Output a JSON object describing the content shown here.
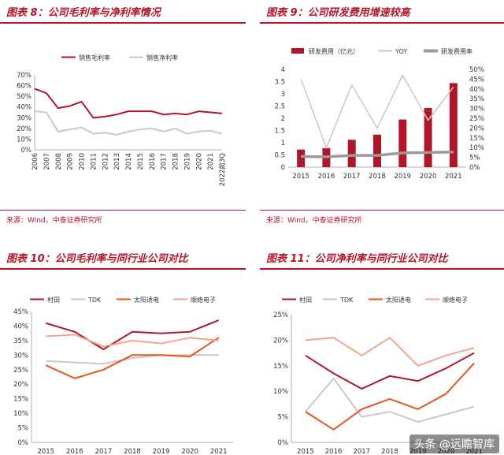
{
  "colors": {
    "accent": "#b0152a",
    "gray": "#c8c8c8",
    "orange": "#e8531e",
    "salmon": "#f5a48c"
  },
  "panels": [
    {
      "title": "图表 8：公司毛利率与净利率情况",
      "source": "来源：Wind，中泰证券研究所"
    },
    {
      "title": "图表 9：公司研发费用增速较高",
      "source": "来源：Wind，中泰证券研究所"
    },
    {
      "title": "图表 10：公司毛利率与同行业公司对比",
      "source": ""
    },
    {
      "title": "图表 11：公司净利率与同行业公司对比",
      "source": ""
    }
  ],
  "watermark": "头条 @远瞻智库",
  "chart_data": [
    {
      "type": "line",
      "categories": [
        "2006",
        "2007",
        "2008",
        "2009",
        "2010",
        "2011",
        "2012",
        "2013",
        "2014",
        "2015",
        "2016",
        "2017",
        "2018",
        "2019",
        "2020",
        "2021",
        "2022前3Q"
      ],
      "series": [
        {
          "name": "销售毛利率",
          "color": "#b0152a",
          "values": [
            57,
            53,
            39,
            41,
            45,
            30,
            31,
            33,
            36,
            36,
            36,
            33,
            34,
            33,
            36,
            35,
            34
          ]
        },
        {
          "name": "销售净利率",
          "color": "#c8c8c8",
          "values": [
            36,
            35,
            17,
            19,
            21,
            15,
            16,
            14,
            17,
            19,
            20,
            17,
            20,
            15,
            17,
            18,
            15
          ]
        }
      ],
      "ylim": [
        0,
        70
      ],
      "yticks": [
        "0%",
        "10%",
        "20%",
        "30%",
        "40%",
        "50%",
        "60%",
        "70%"
      ]
    },
    {
      "type": "bar",
      "categories": [
        "2015",
        "2016",
        "2017",
        "2018",
        "2019",
        "2020",
        "2021"
      ],
      "series": [
        {
          "name": "研发费用（亿元）",
          "color": "#b0152a",
          "axis": "left",
          "values": [
            0.72,
            0.78,
            1.12,
            1.33,
            1.95,
            2.42,
            3.44
          ]
        },
        {
          "name": "YOY",
          "color": "#c8c8c8",
          "axis": "right",
          "values": [
            45,
            10,
            42,
            20,
            47,
            24,
            41
          ]
        },
        {
          "name": "研发费用率",
          "color": "#9a9a9a",
          "axis": "right",
          "values": [
            5.5,
            5.3,
            6.0,
            6.0,
            7.3,
            7.5,
            7.8
          ]
        }
      ],
      "ylim": [
        0,
        4
      ],
      "yticks": [
        "0",
        "0.5",
        "1",
        "1.5",
        "2",
        "2.5",
        "3",
        "3.5",
        "4"
      ],
      "y2lim": [
        0,
        50
      ],
      "y2ticks": [
        "0%",
        "5%",
        "10%",
        "15%",
        "20%",
        "25%",
        "30%",
        "35%",
        "40%",
        "45%",
        "50%"
      ]
    },
    {
      "type": "line",
      "categories": [
        "2015",
        "2016",
        "2017",
        "2018",
        "2019",
        "2020",
        "2021"
      ],
      "series": [
        {
          "name": "村田",
          "color": "#b0152a",
          "values": [
            41,
            38,
            32,
            38,
            37.5,
            38,
            42
          ]
        },
        {
          "name": "TDK",
          "color": "#c8c8c8",
          "values": [
            28,
            27.5,
            27,
            29,
            30,
            30,
            30
          ]
        },
        {
          "name": "太阳诱电",
          "color": "#e8531e",
          "values": [
            26.5,
            22,
            25,
            30,
            30,
            29.5,
            36
          ]
        },
        {
          "name": "顺络电子",
          "color": "#f5a48c",
          "values": [
            36.5,
            37,
            33,
            35,
            34,
            36,
            35
          ]
        }
      ],
      "ylim": [
        0,
        45
      ],
      "yticks": [
        "0%",
        "5%",
        "10%",
        "15%",
        "20%",
        "25%",
        "30%",
        "35%",
        "40%",
        "45%"
      ]
    },
    {
      "type": "line",
      "categories": [
        "2015",
        "2016",
        "2017",
        "2018",
        "2019",
        "2020",
        "2021"
      ],
      "series": [
        {
          "name": "村田",
          "color": "#b0152a",
          "values": [
            17,
            13.5,
            10.5,
            13,
            12,
            14.5,
            17.5
          ]
        },
        {
          "name": "TDK",
          "color": "#c8c8c8",
          "values": [
            6,
            12.5,
            5,
            6,
            4,
            5.5,
            7
          ]
        },
        {
          "name": "太阳诱电",
          "color": "#e8531e",
          "values": [
            6,
            2.5,
            6.5,
            8.5,
            6.5,
            9.5,
            15.5
          ]
        },
        {
          "name": "顺络电子",
          "color": "#f5a48c",
          "values": [
            20,
            20.5,
            17,
            20.5,
            15,
            17,
            18.5
          ]
        }
      ],
      "ylim": [
        0,
        25
      ],
      "yticks": [
        "0%",
        "5%",
        "10%",
        "15%",
        "20%",
        "25%"
      ]
    }
  ]
}
